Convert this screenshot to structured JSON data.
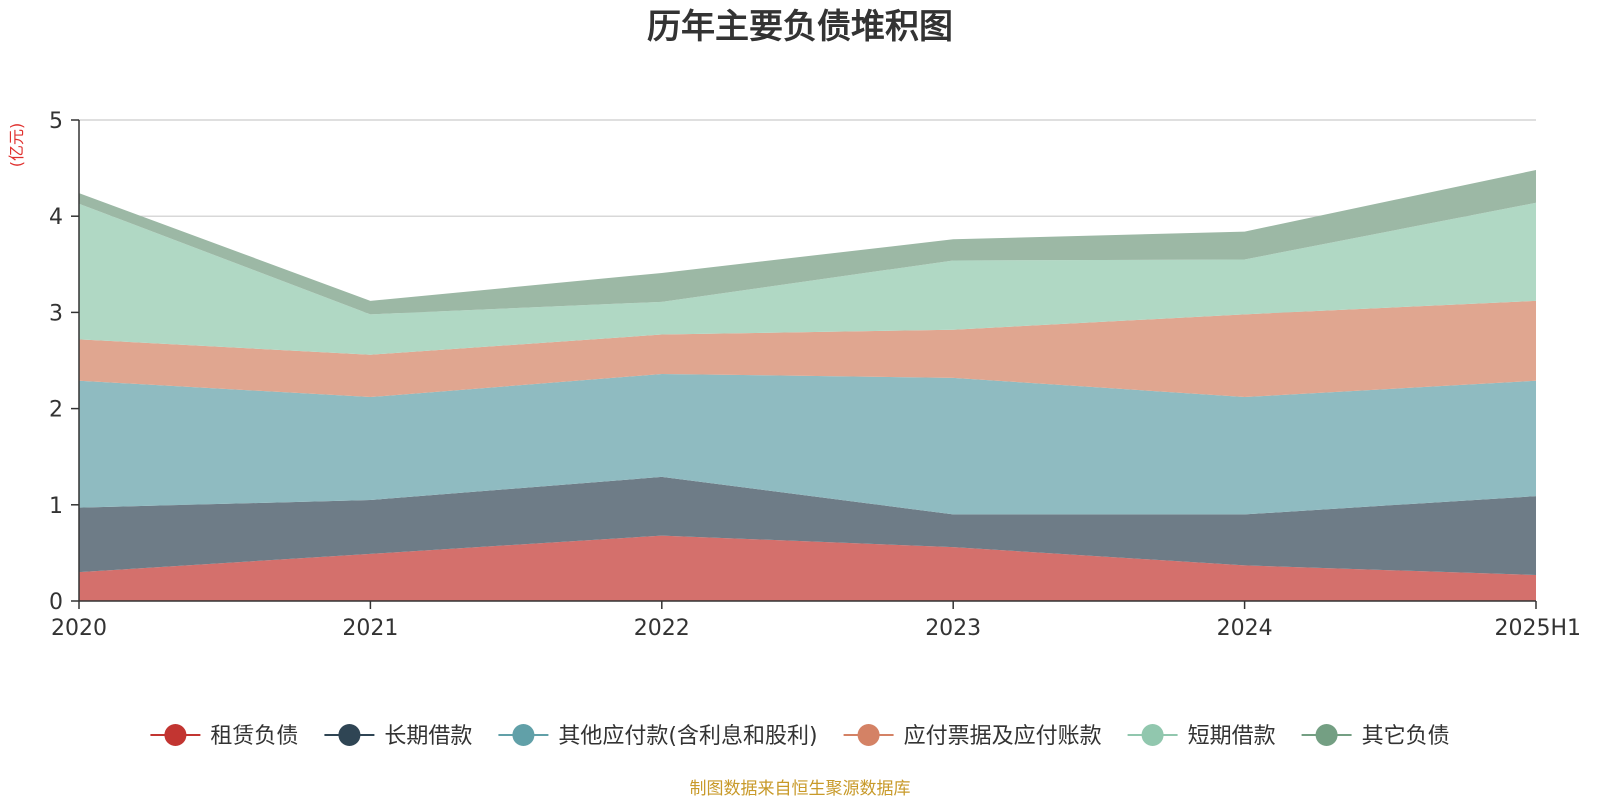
{
  "chart_data": {
    "type": "area",
    "title": "历年主要负债堆积图",
    "unit_label": "(亿元)",
    "source_note": "制图数据来自恒生聚源数据库",
    "categories": [
      "2020",
      "2021",
      "2022",
      "2023",
      "2024",
      "2025H1"
    ],
    "ylim": [
      0,
      5
    ],
    "yticks": [
      0,
      1,
      2,
      3,
      4,
      5
    ],
    "grid": true,
    "legend_position": "bottom",
    "stacked": true,
    "series": [
      {
        "name": "租赁负债",
        "values": [
          0.3,
          0.49,
          0.68,
          0.56,
          0.37,
          0.27
        ],
        "color": "#d4706c",
        "marker_color": "#c23531"
      },
      {
        "name": "长期借款",
        "values": [
          0.67,
          0.56,
          0.61,
          0.34,
          0.53,
          0.82
        ],
        "color": "#6e7c87",
        "marker_color": "#2f4554"
      },
      {
        "name": "其他应付款(含利息和股利)",
        "values": [
          1.32,
          1.07,
          1.07,
          1.42,
          1.22,
          1.2
        ],
        "color": "#8fbbc1",
        "marker_color": "#61a0a8"
      },
      {
        "name": "应付票据及应付账款",
        "values": [
          0.43,
          0.44,
          0.41,
          0.5,
          0.86,
          0.83
        ],
        "color": "#e0a690",
        "marker_color": "#d48265"
      },
      {
        "name": "短期借款",
        "values": [
          1.41,
          0.42,
          0.34,
          0.72,
          0.57,
          1.02
        ],
        "color": "#b0d8c4",
        "marker_color": "#91c7ae"
      },
      {
        "name": "其它负债",
        "values": [
          0.11,
          0.14,
          0.3,
          0.22,
          0.29,
          0.34
        ],
        "color": "#9cb8a5",
        "marker_color": "#749f83"
      }
    ]
  }
}
